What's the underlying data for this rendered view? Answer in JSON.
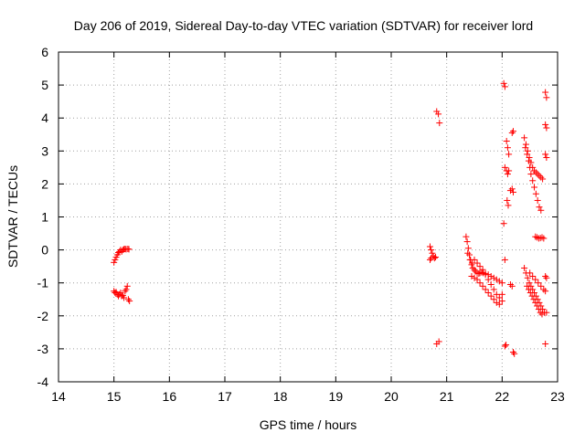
{
  "chart_data": {
    "type": "scatter",
    "title": "Day 206 of 2019, Sidereal Day-to-day VTEC variation (SDTVAR) for receiver lord",
    "xlabel": "GPS time / hours",
    "ylabel": "SDTVAR / TECUs",
    "xlim": [
      14,
      23
    ],
    "ylim": [
      -4,
      6
    ],
    "xticks": [
      "14",
      "15",
      "16",
      "17",
      "18",
      "19",
      "20",
      "21",
      "22",
      "23"
    ],
    "yticks": [
      "-4",
      "-3",
      "-2",
      "-1",
      "0",
      "1",
      "2",
      "3",
      "4",
      "5",
      "6"
    ],
    "grid": true,
    "marker": "+",
    "color": "#ff0000",
    "series": [
      {
        "name": "SDTVAR",
        "points": [
          [
            15.0,
            -0.38
          ],
          [
            15.02,
            -0.3
          ],
          [
            15.04,
            -0.22
          ],
          [
            15.06,
            -0.15
          ],
          [
            15.08,
            -0.08
          ],
          [
            15.1,
            -0.05
          ],
          [
            15.12,
            0.0
          ],
          [
            15.14,
            -0.05
          ],
          [
            15.16,
            0.0
          ],
          [
            15.18,
            0.02
          ],
          [
            15.2,
            0.03
          ],
          [
            15.22,
            0.02
          ],
          [
            15.25,
            0.03
          ],
          [
            15.27,
            0.02
          ],
          [
            15.0,
            -1.25
          ],
          [
            15.02,
            -1.3
          ],
          [
            15.04,
            -1.28
          ],
          [
            15.06,
            -1.35
          ],
          [
            15.08,
            -1.4
          ],
          [
            15.1,
            -1.35
          ],
          [
            15.12,
            -1.3
          ],
          [
            15.14,
            -1.4
          ],
          [
            15.16,
            -1.38
          ],
          [
            15.18,
            -1.45
          ],
          [
            15.2,
            -1.25
          ],
          [
            15.22,
            -1.2
          ],
          [
            15.24,
            -1.1
          ],
          [
            15.26,
            -1.5
          ],
          [
            15.28,
            -1.55
          ],
          [
            20.7,
            0.1
          ],
          [
            20.72,
            0.0
          ],
          [
            20.74,
            -0.1
          ],
          [
            20.76,
            -0.2
          ],
          [
            20.78,
            -0.25
          ],
          [
            20.8,
            -0.22
          ],
          [
            20.7,
            -0.3
          ],
          [
            20.72,
            -0.25
          ],
          [
            20.82,
            4.2
          ],
          [
            20.85,
            4.12
          ],
          [
            20.87,
            3.85
          ],
          [
            20.82,
            -2.85
          ],
          [
            20.86,
            -2.78
          ],
          [
            21.35,
            0.4
          ],
          [
            21.37,
            0.25
          ],
          [
            21.39,
            0.05
          ],
          [
            21.41,
            -0.15
          ],
          [
            21.43,
            -0.3
          ],
          [
            21.45,
            -0.45
          ],
          [
            21.47,
            -0.55
          ],
          [
            21.5,
            -0.6
          ],
          [
            21.52,
            -0.65
          ],
          [
            21.55,
            -0.7
          ],
          [
            21.58,
            -0.72
          ],
          [
            21.6,
            -0.7
          ],
          [
            21.63,
            -0.68
          ],
          [
            21.66,
            -0.7
          ],
          [
            21.7,
            -0.72
          ],
          [
            21.75,
            -0.75
          ],
          [
            21.8,
            -0.8
          ],
          [
            21.85,
            -0.85
          ],
          [
            21.9,
            -0.9
          ],
          [
            21.95,
            -0.95
          ],
          [
            22.0,
            -1.0
          ],
          [
            21.38,
            -0.1
          ],
          [
            21.42,
            -0.3
          ],
          [
            21.46,
            -0.4
          ],
          [
            21.5,
            -0.3
          ],
          [
            21.55,
            -0.4
          ],
          [
            21.6,
            -0.5
          ],
          [
            21.65,
            -0.6
          ],
          [
            21.7,
            -0.75
          ],
          [
            21.75,
            -0.9
          ],
          [
            21.8,
            -1.05
          ],
          [
            21.85,
            -1.2
          ],
          [
            21.9,
            -1.35
          ],
          [
            21.95,
            -1.45
          ],
          [
            22.0,
            -1.35
          ],
          [
            21.45,
            -0.8
          ],
          [
            21.5,
            -0.85
          ],
          [
            21.55,
            -0.9
          ],
          [
            21.6,
            -1.0
          ],
          [
            21.65,
            -1.1
          ],
          [
            21.7,
            -1.2
          ],
          [
            21.75,
            -1.3
          ],
          [
            21.8,
            -1.4
          ],
          [
            21.85,
            -1.5
          ],
          [
            21.9,
            -1.6
          ],
          [
            21.95,
            -1.65
          ],
          [
            22.0,
            -1.55
          ],
          [
            22.03,
            5.05
          ],
          [
            22.05,
            4.95
          ],
          [
            22.03,
            0.8
          ],
          [
            22.05,
            -0.3
          ],
          [
            22.05,
            -2.92
          ],
          [
            22.07,
            -2.88
          ],
          [
            22.05,
            2.5
          ],
          [
            22.08,
            2.4
          ],
          [
            22.1,
            2.3
          ],
          [
            22.12,
            2.4
          ],
          [
            22.08,
            3.3
          ],
          [
            22.1,
            3.1
          ],
          [
            22.12,
            2.9
          ],
          [
            22.09,
            1.5
          ],
          [
            22.11,
            1.35
          ],
          [
            22.15,
            1.8
          ],
          [
            22.18,
            1.85
          ],
          [
            22.2,
            1.75
          ],
          [
            22.18,
            3.55
          ],
          [
            22.2,
            3.6
          ],
          [
            22.15,
            -1.05
          ],
          [
            22.18,
            -1.1
          ],
          [
            22.2,
            -3.1
          ],
          [
            22.22,
            -3.15
          ],
          [
            22.4,
            3.4
          ],
          [
            22.43,
            3.2
          ],
          [
            22.46,
            3.0
          ],
          [
            22.49,
            2.8
          ],
          [
            22.52,
            2.65
          ],
          [
            22.55,
            2.5
          ],
          [
            22.58,
            2.4
          ],
          [
            22.61,
            2.35
          ],
          [
            22.64,
            2.3
          ],
          [
            22.67,
            2.25
          ],
          [
            22.7,
            2.2
          ],
          [
            22.73,
            2.15
          ],
          [
            22.42,
            3.1
          ],
          [
            22.45,
            2.9
          ],
          [
            22.48,
            2.7
          ],
          [
            22.5,
            2.5
          ],
          [
            22.52,
            2.3
          ],
          [
            22.55,
            2.1
          ],
          [
            22.58,
            1.9
          ],
          [
            22.61,
            1.7
          ],
          [
            22.64,
            1.5
          ],
          [
            22.67,
            1.3
          ],
          [
            22.7,
            1.2
          ],
          [
            22.6,
            0.4
          ],
          [
            22.63,
            0.38
          ],
          [
            22.66,
            0.35
          ],
          [
            22.69,
            0.36
          ],
          [
            22.72,
            0.38
          ],
          [
            22.75,
            0.35
          ],
          [
            22.4,
            -0.55
          ],
          [
            22.43,
            -0.7
          ],
          [
            22.46,
            -0.85
          ],
          [
            22.49,
            -1.0
          ],
          [
            22.52,
            -1.1
          ],
          [
            22.55,
            -1.2
          ],
          [
            22.58,
            -1.3
          ],
          [
            22.61,
            -1.4
          ],
          [
            22.64,
            -1.5
          ],
          [
            22.67,
            -1.6
          ],
          [
            22.7,
            -1.7
          ],
          [
            22.73,
            -1.8
          ],
          [
            22.76,
            -1.9
          ],
          [
            22.45,
            -1.1
          ],
          [
            22.48,
            -1.2
          ],
          [
            22.51,
            -1.3
          ],
          [
            22.54,
            -1.4
          ],
          [
            22.57,
            -1.5
          ],
          [
            22.6,
            -1.6
          ],
          [
            22.63,
            -1.7
          ],
          [
            22.66,
            -1.8
          ],
          [
            22.69,
            -1.9
          ],
          [
            22.72,
            -1.95
          ],
          [
            22.5,
            -0.7
          ],
          [
            22.55,
            -0.8
          ],
          [
            22.6,
            -0.9
          ],
          [
            22.65,
            -1.0
          ],
          [
            22.7,
            -1.1
          ],
          [
            22.75,
            -1.2
          ],
          [
            22.78,
            -1.25
          ],
          [
            22.78,
            4.78
          ],
          [
            22.8,
            4.62
          ],
          [
            22.78,
            3.8
          ],
          [
            22.8,
            3.7
          ],
          [
            22.78,
            2.9
          ],
          [
            22.8,
            2.8
          ],
          [
            22.78,
            -0.8
          ],
          [
            22.8,
            -0.85
          ],
          [
            22.78,
            -2.85
          ],
          [
            22.8,
            -1.9
          ]
        ]
      }
    ]
  }
}
